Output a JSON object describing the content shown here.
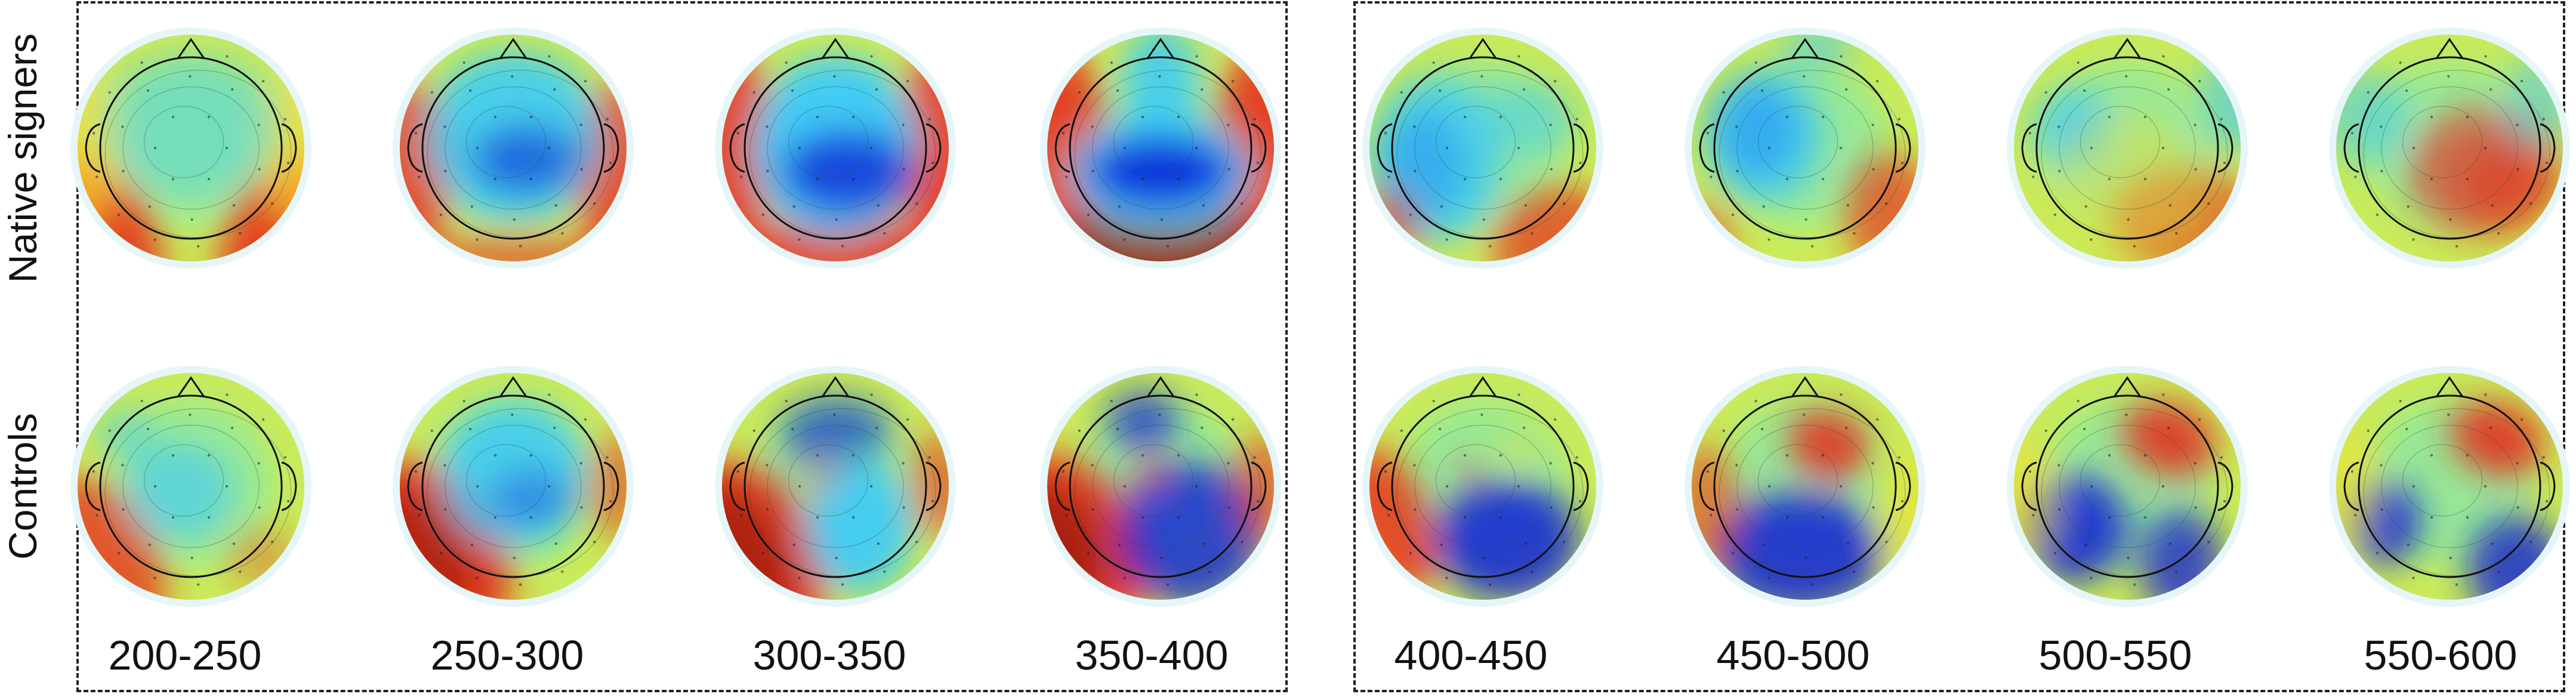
{
  "rows": {
    "native": "Native signers",
    "controls": "Controls"
  },
  "time_windows": [
    "200-250",
    "250-300",
    "300-350",
    "350-400",
    "400-450",
    "450-500",
    "500-550",
    "550-600"
  ],
  "colormap": {
    "low": "#0a1ed6",
    "mid_low": "#36c8ff",
    "mid": "#b8f070",
    "mid_high": "#f6e02c",
    "high": "#e8261a",
    "extreme": "#8a0a0a"
  }
}
